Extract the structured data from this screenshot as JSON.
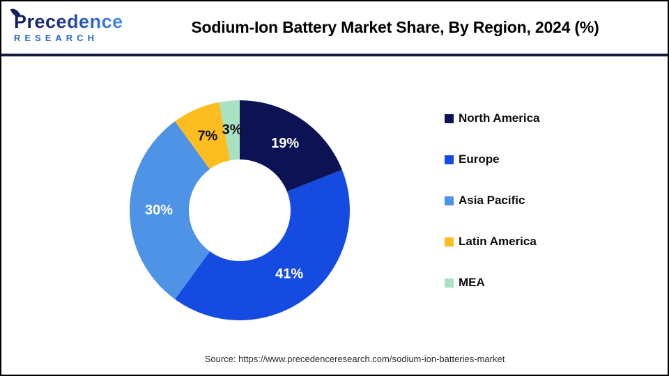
{
  "header": {
    "logo": {
      "name": "Precedence",
      "sub": "RESEARCH"
    },
    "title": "Sodium-Ion Battery Market Share, By Region, 2024 (%)"
  },
  "chart_data": {
    "type": "pie",
    "subtype": "donut",
    "title": "Sodium-Ion Battery Market Share, By Region, 2024 (%)",
    "categories": [
      "North America",
      "Europe",
      "Asia Pacific",
      "Latin America",
      "MEA"
    ],
    "values": [
      19,
      41,
      30,
      7,
      3
    ],
    "slice_labels": [
      "19%",
      "41%",
      "30%",
      "7%",
      "3%"
    ],
    "colors": [
      "#0c1254",
      "#154be0",
      "#4f93e6",
      "#fcbd21",
      "#a9e2c3"
    ],
    "slice_label_colors": [
      "#ffffff",
      "#ffffff",
      "#ffffff",
      "#111111",
      "#111111"
    ],
    "start_angle_deg": 0,
    "direction": "clockwise",
    "legend_position": "right"
  },
  "footer": {
    "source": "Source: https://www.precedenceresearch.com/sodium-ion-batteries-market"
  }
}
